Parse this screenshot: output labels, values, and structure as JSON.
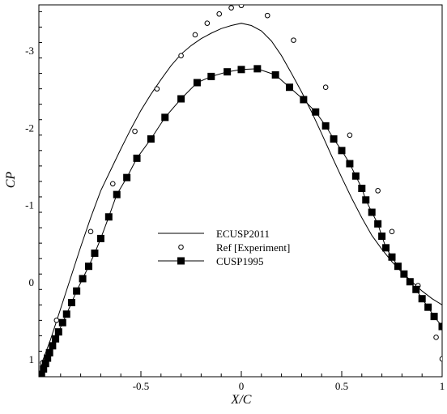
{
  "chart_data": {
    "type": "line",
    "title": "",
    "xlabel": "X/C",
    "ylabel": "CP",
    "xlim": [
      -1.0,
      1.0
    ],
    "ylim": [
      1.2,
      -3.55
    ],
    "y_inverted": true,
    "x_ticks": [
      {
        "value": -0.5,
        "label": "-0.5"
      },
      {
        "value": 0,
        "label": "0"
      },
      {
        "value": 0.5,
        "label": "0.5"
      },
      {
        "value": 1,
        "label": "1"
      }
    ],
    "y_ticks": [
      {
        "value": -3,
        "label": "-3"
      },
      {
        "value": -2,
        "label": "-2"
      },
      {
        "value": -1,
        "label": "-1"
      },
      {
        "value": 0,
        "label": "0"
      },
      {
        "value": 1,
        "label": "1"
      }
    ],
    "grid": false,
    "legend_position": "center-left",
    "series": [
      {
        "name": "ECUSP2011",
        "style": "line",
        "color": "#000000",
        "x": [
          -1.0,
          -0.95,
          -0.9,
          -0.85,
          -0.8,
          -0.75,
          -0.7,
          -0.65,
          -0.6,
          -0.55,
          -0.5,
          -0.45,
          -0.4,
          -0.35,
          -0.3,
          -0.25,
          -0.2,
          -0.15,
          -0.1,
          -0.05,
          0.0,
          0.05,
          0.1,
          0.15,
          0.2,
          0.25,
          0.3,
          0.35,
          0.4,
          0.45,
          0.5,
          0.55,
          0.6,
          0.65,
          0.7,
          0.75,
          0.8,
          0.85,
          0.9,
          0.95,
          1.0
        ],
        "y": [
          1.1,
          0.75,
          0.35,
          -0.05,
          -0.45,
          -0.83,
          -1.18,
          -1.45,
          -1.72,
          -1.98,
          -2.22,
          -2.43,
          -2.62,
          -2.8,
          -2.95,
          -3.06,
          -3.15,
          -3.22,
          -3.28,
          -3.32,
          -3.35,
          -3.32,
          -3.25,
          -3.12,
          -2.93,
          -2.7,
          -2.46,
          -2.2,
          -1.92,
          -1.63,
          -1.35,
          -1.08,
          -0.83,
          -0.6,
          -0.42,
          -0.26,
          -0.12,
          0.0,
          0.12,
          0.22,
          0.3
        ]
      },
      {
        "name": "Ref [Experiment]",
        "style": "markers",
        "marker": "open-circle",
        "color": "#000000",
        "x": [
          -0.99,
          -0.92,
          -0.75,
          -0.64,
          -0.53,
          -0.42,
          -0.3,
          -0.23,
          -0.17,
          -0.11,
          -0.05,
          0.0,
          0.13,
          0.26,
          0.42,
          0.54,
          0.68,
          0.75,
          0.88,
          0.97,
          1.0
        ],
        "y": [
          1.05,
          0.5,
          -0.65,
          -1.27,
          -1.95,
          -2.5,
          -2.93,
          -3.2,
          -3.35,
          -3.47,
          -3.55,
          -3.58,
          -3.45,
          -3.13,
          -2.52,
          -1.9,
          -1.18,
          -0.65,
          0.05,
          0.72,
          1.0
        ]
      },
      {
        "name": "CUSP1995",
        "style": "line-markers",
        "marker": "filled-square",
        "color": "#000000",
        "x": [
          -0.995,
          -0.985,
          -0.975,
          -0.965,
          -0.955,
          -0.94,
          -0.925,
          -0.91,
          -0.89,
          -0.87,
          -0.845,
          -0.82,
          -0.79,
          -0.76,
          -0.73,
          -0.7,
          -0.66,
          -0.62,
          -0.57,
          -0.52,
          -0.45,
          -0.38,
          -0.3,
          -0.22,
          -0.15,
          -0.07,
          0.0,
          0.08,
          0.17,
          0.24,
          0.31,
          0.37,
          0.42,
          0.46,
          0.5,
          0.54,
          0.57,
          0.6,
          0.62,
          0.65,
          0.68,
          0.7,
          0.72,
          0.75,
          0.78,
          0.81,
          0.84,
          0.87,
          0.9,
          0.93,
          0.96,
          1.0
        ],
        "y": [
          1.2,
          1.13,
          1.06,
          0.99,
          0.92,
          0.83,
          0.74,
          0.65,
          0.53,
          0.42,
          0.27,
          0.12,
          -0.04,
          -0.2,
          -0.37,
          -0.56,
          -0.84,
          -1.13,
          -1.35,
          -1.6,
          -1.85,
          -2.13,
          -2.37,
          -2.58,
          -2.66,
          -2.72,
          -2.75,
          -2.76,
          -2.68,
          -2.52,
          -2.36,
          -2.2,
          -2.02,
          -1.85,
          -1.7,
          -1.53,
          -1.37,
          -1.21,
          -1.06,
          -0.9,
          -0.75,
          -0.59,
          -0.44,
          -0.32,
          -0.2,
          -0.1,
          0.0,
          0.1,
          0.22,
          0.33,
          0.45,
          0.58
        ]
      }
    ]
  }
}
